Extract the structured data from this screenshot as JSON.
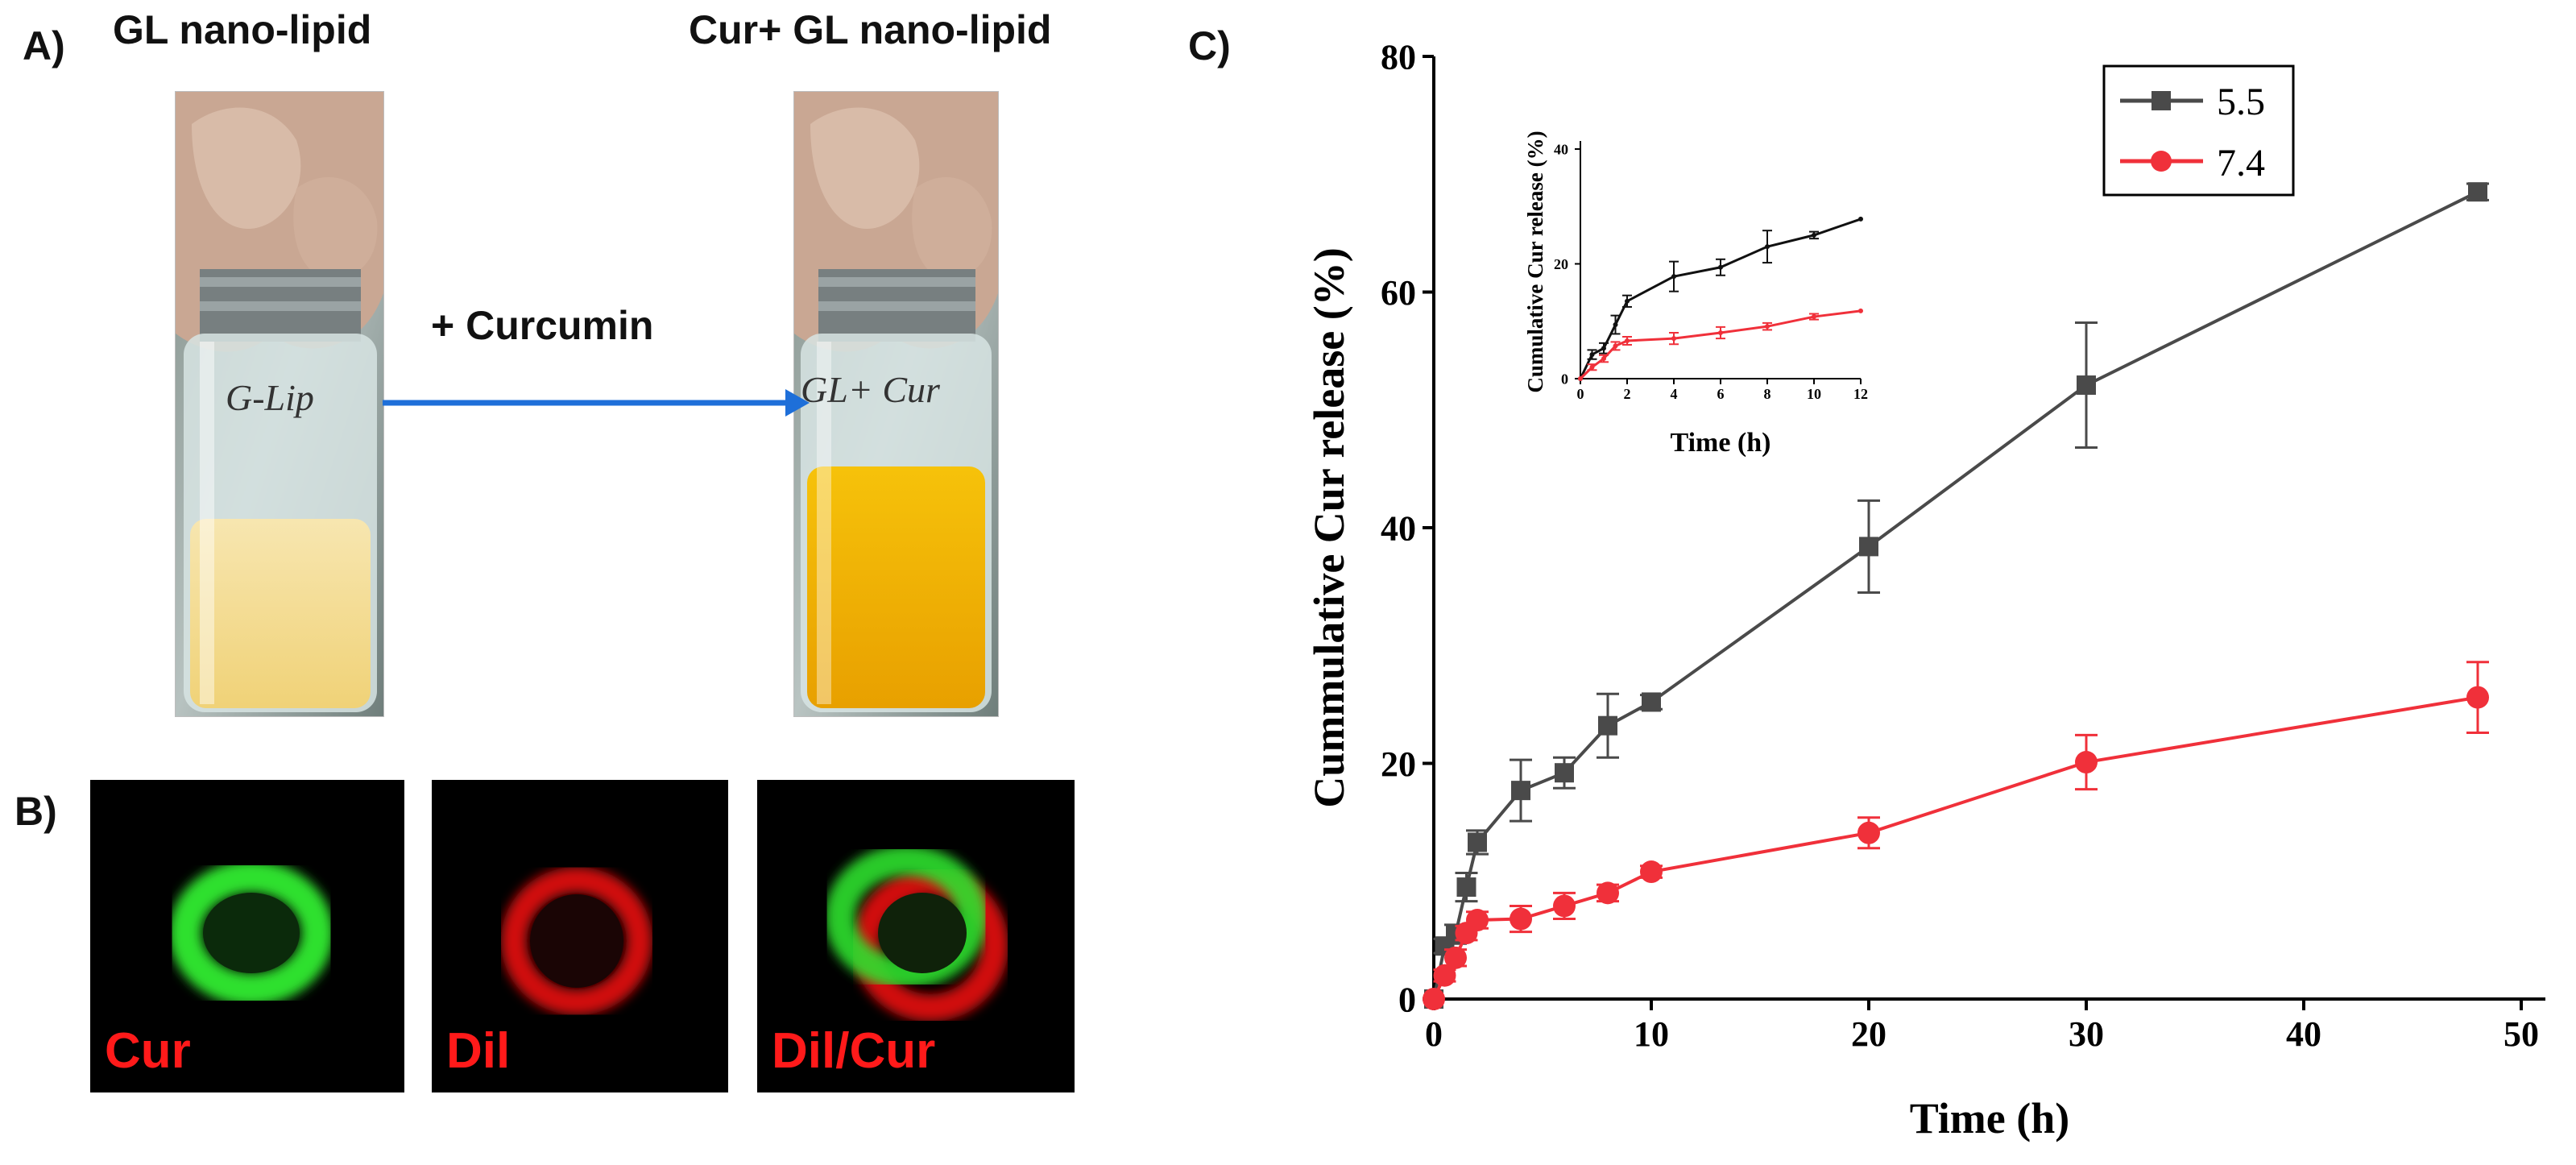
{
  "panel_a": {
    "letter": "A)",
    "vial_left_title": "GL nano-lipid",
    "vial_right_title": "Cur+ GL nano-lipid",
    "vial_left_label": "G-Lip",
    "vial_right_label": "GL+ Cur",
    "arrow_label": "+ Curcumin",
    "arrow_color": "#1e6fd9"
  },
  "panel_b": {
    "letter": "B)",
    "images": [
      {
        "label": "Cur",
        "ring": "green"
      },
      {
        "label": "Dil",
        "ring": "red"
      },
      {
        "label": "Dil/Cur",
        "ring": "merge"
      }
    ]
  },
  "panel_c": {
    "letter": "C)"
  },
  "chart_data": [
    {
      "type": "line",
      "xlabel": "Time (h)",
      "ylabel": "Cummulative Cur release (%)",
      "xlim": [
        0,
        50
      ],
      "ylim": [
        0,
        80
      ],
      "xticks": [
        0,
        10,
        20,
        30,
        40,
        50
      ],
      "yticks": [
        0,
        20,
        40,
        60,
        80
      ],
      "legend_position": "top-right",
      "series": [
        {
          "name": "5.5",
          "color": "#4a4a4a",
          "marker": "square",
          "x": [
            0,
            0.5,
            1,
            1.5,
            2,
            4,
            6,
            8,
            10,
            20,
            30,
            48
          ],
          "y": [
            0,
            4.5,
            5.5,
            9.5,
            13.3,
            17.7,
            19.2,
            23.2,
            25.2,
            38.4,
            52.1,
            68.5
          ],
          "err": [
            0,
            0.6,
            0.8,
            1.2,
            1.0,
            2.6,
            1.3,
            2.7,
            0.6,
            3.9,
            5.3,
            0.7
          ]
        },
        {
          "name": "7.4",
          "color": "#f0303a",
          "marker": "circle",
          "x": [
            0,
            0.5,
            1,
            1.5,
            2,
            4,
            6,
            8,
            10,
            20,
            30,
            48
          ],
          "y": [
            0,
            2.0,
            3.5,
            5.6,
            6.7,
            6.8,
            7.9,
            9.0,
            10.8,
            14.1,
            20.1,
            25.6
          ],
          "err": [
            0,
            0.5,
            0.7,
            0.6,
            0.7,
            1.1,
            1.1,
            0.7,
            0.5,
            1.3,
            2.3,
            3.0
          ]
        }
      ]
    },
    {
      "type": "line",
      "xlabel": "Time (h)",
      "ylabel": "Cumulative Cur release (%)",
      "xlim": [
        0,
        12
      ],
      "ylim": [
        0,
        40
      ],
      "xticks": [
        0,
        2,
        4,
        6,
        8,
        10,
        12
      ],
      "yticks": [
        0,
        20,
        40
      ],
      "series": [
        {
          "name": "5.5",
          "color": "#111111",
          "x": [
            0,
            0.5,
            1,
            1.5,
            2,
            4,
            6,
            8,
            10,
            12
          ],
          "y": [
            0,
            4.2,
            5.3,
            9.4,
            13.5,
            17.8,
            19.4,
            23.0,
            25.0,
            27.8
          ],
          "err": [
            0,
            0.8,
            0.9,
            1.6,
            1.0,
            2.6,
            1.4,
            2.8,
            0.6,
            0
          ]
        },
        {
          "name": "7.4",
          "color": "#f0303a",
          "x": [
            0,
            0.5,
            1,
            1.5,
            2,
            4,
            6,
            8,
            10,
            12
          ],
          "y": [
            0,
            2.0,
            3.5,
            5.7,
            6.6,
            7.0,
            8.0,
            9.1,
            10.8,
            11.8
          ],
          "err": [
            0,
            0.5,
            0.6,
            0.7,
            0.7,
            1.0,
            1.0,
            0.6,
            0.5,
            0
          ]
        }
      ]
    }
  ]
}
